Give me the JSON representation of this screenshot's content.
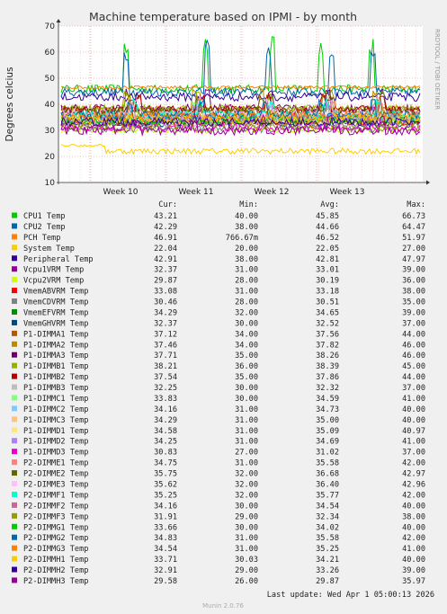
{
  "chart_data": {
    "type": "line",
    "title": "Machine temperature based on IPMI - by month",
    "ylabel": "Degrees celcius",
    "side_label": "RRDTOOL / TOBI OETIKER",
    "ylim": [
      10,
      70
    ],
    "yticks": [
      "10",
      "20",
      "30",
      "40",
      "50",
      "60",
      "70"
    ],
    "xticks": [
      "Week 10",
      "Week 11",
      "Week 12",
      "Week 13"
    ],
    "grid": true,
    "legend_columns": [
      "Cur:",
      "Min:",
      "Avg:",
      "Max:"
    ],
    "series": [
      {
        "name": "CPU1 Temp",
        "color": "#00cc00",
        "cur": "43.21",
        "min": "40.00",
        "avg": "45.85",
        "max": "66.73"
      },
      {
        "name": "CPU2 Temp",
        "color": "#0066b3",
        "cur": "42.29",
        "min": "38.00",
        "avg": "44.66",
        "max": "64.47"
      },
      {
        "name": "PCH Temp",
        "color": "#ff8000",
        "cur": "46.91",
        "min": "766.67m",
        "avg": "46.52",
        "max": "51.97"
      },
      {
        "name": "System Temp",
        "color": "#ffcc00",
        "cur": "22.04",
        "min": "20.00",
        "avg": "22.05",
        "max": "27.00"
      },
      {
        "name": "Peripheral Temp",
        "color": "#330099",
        "cur": "42.91",
        "min": "38.00",
        "avg": "42.81",
        "max": "47.97"
      },
      {
        "name": "Vcpu1VRM Temp",
        "color": "#990099",
        "cur": "32.37",
        "min": "31.00",
        "avg": "33.01",
        "max": "39.00"
      },
      {
        "name": "Vcpu2VRM Temp",
        "color": "#ccff00",
        "cur": "29.87",
        "min": "28.00",
        "avg": "30.19",
        "max": "36.00"
      },
      {
        "name": "VmemABVRM Temp",
        "color": "#ff0000",
        "cur": "33.08",
        "min": "31.00",
        "avg": "33.18",
        "max": "38.00"
      },
      {
        "name": "VmemCDVRM Temp",
        "color": "#808080",
        "cur": "30.46",
        "min": "28.00",
        "avg": "30.51",
        "max": "35.00"
      },
      {
        "name": "VmemEFVRM Temp",
        "color": "#008f00",
        "cur": "34.29",
        "min": "32.00",
        "avg": "34.65",
        "max": "39.00"
      },
      {
        "name": "VmemGHVRM Temp",
        "color": "#00487d",
        "cur": "32.37",
        "min": "30.00",
        "avg": "32.52",
        "max": "37.00"
      },
      {
        "name": "P1-DIMMA1 Temp",
        "color": "#b35a00",
        "cur": "37.12",
        "min": "34.00",
        "avg": "37.56",
        "max": "44.00"
      },
      {
        "name": "P1-DIMMA2 Temp",
        "color": "#b38f00",
        "cur": "37.46",
        "min": "34.00",
        "avg": "37.82",
        "max": "46.00"
      },
      {
        "name": "P1-DIMMA3 Temp",
        "color": "#6b006b",
        "cur": "37.71",
        "min": "35.00",
        "avg": "38.26",
        "max": "46.00"
      },
      {
        "name": "P1-DIMMB1 Temp",
        "color": "#8fb300",
        "cur": "38.21",
        "min": "36.00",
        "avg": "38.39",
        "max": "45.00"
      },
      {
        "name": "P1-DIMMB2 Temp",
        "color": "#b30000",
        "cur": "37.54",
        "min": "35.00",
        "avg": "37.86",
        "max": "44.00"
      },
      {
        "name": "P1-DIMMB3 Temp",
        "color": "#bebebe",
        "cur": "32.25",
        "min": "30.00",
        "avg": "32.32",
        "max": "37.00"
      },
      {
        "name": "P1-DIMMC1 Temp",
        "color": "#80ff80",
        "cur": "33.83",
        "min": "30.00",
        "avg": "34.59",
        "max": "41.00"
      },
      {
        "name": "P1-DIMMC2 Temp",
        "color": "#80c9ff",
        "cur": "34.16",
        "min": "31.00",
        "avg": "34.73",
        "max": "40.00"
      },
      {
        "name": "P1-DIMMC3 Temp",
        "color": "#ffc080",
        "cur": "34.29",
        "min": "31.00",
        "avg": "35.00",
        "max": "40.00"
      },
      {
        "name": "P1-DIMMD1 Temp",
        "color": "#ffe680",
        "cur": "34.58",
        "min": "31.00",
        "avg": "35.09",
        "max": "40.97"
      },
      {
        "name": "P1-DIMMD2 Temp",
        "color": "#aa80ff",
        "cur": "34.25",
        "min": "31.00",
        "avg": "34.69",
        "max": "41.00"
      },
      {
        "name": "P1-DIMMD3 Temp",
        "color": "#ee00cc",
        "cur": "30.83",
        "min": "27.00",
        "avg": "31.02",
        "max": "37.00"
      },
      {
        "name": "P2-DIMME1 Temp",
        "color": "#ff8080",
        "cur": "34.75",
        "min": "31.00",
        "avg": "35.58",
        "max": "42.00"
      },
      {
        "name": "P2-DIMME2 Temp",
        "color": "#666600",
        "cur": "35.75",
        "min": "32.00",
        "avg": "36.68",
        "max": "42.97"
      },
      {
        "name": "P2-DIMME3 Temp",
        "color": "#ffbfff",
        "cur": "35.62",
        "min": "32.00",
        "avg": "36.40",
        "max": "42.96"
      },
      {
        "name": "P2-DIMMF1 Temp",
        "color": "#00ffcc",
        "cur": "35.25",
        "min": "32.00",
        "avg": "35.77",
        "max": "42.00"
      },
      {
        "name": "P2-DIMMF2 Temp",
        "color": "#cc6699",
        "cur": "34.16",
        "min": "30.00",
        "avg": "34.54",
        "max": "40.00"
      },
      {
        "name": "P2-DIMMF3 Temp",
        "color": "#999900",
        "cur": "31.91",
        "min": "29.00",
        "avg": "32.34",
        "max": "38.00"
      },
      {
        "name": "P2-DIMMG1 Temp",
        "color": "#00cc00",
        "cur": "33.66",
        "min": "30.00",
        "avg": "34.02",
        "max": "40.00"
      },
      {
        "name": "P2-DIMMG2 Temp",
        "color": "#0066b3",
        "cur": "34.83",
        "min": "31.00",
        "avg": "35.58",
        "max": "42.00"
      },
      {
        "name": "P2-DIMMG3 Temp",
        "color": "#ff8000",
        "cur": "34.54",
        "min": "31.00",
        "avg": "35.25",
        "max": "41.00"
      },
      {
        "name": "P2-DIMMH1 Temp",
        "color": "#ffcc00",
        "cur": "33.71",
        "min": "30.03",
        "avg": "34.21",
        "max": "40.00"
      },
      {
        "name": "P2-DIMMH2 Temp",
        "color": "#330099",
        "cur": "32.91",
        "min": "29.00",
        "avg": "33.26",
        "max": "39.00"
      },
      {
        "name": "P2-DIMMH3 Temp",
        "color": "#990099",
        "cur": "29.58",
        "min": "26.00",
        "avg": "29.87",
        "max": "35.97"
      }
    ]
  },
  "footer": {
    "last_update": "Last update: Wed Apr  1 05:00:13 2026",
    "munin": "Munin 2.0.76"
  }
}
